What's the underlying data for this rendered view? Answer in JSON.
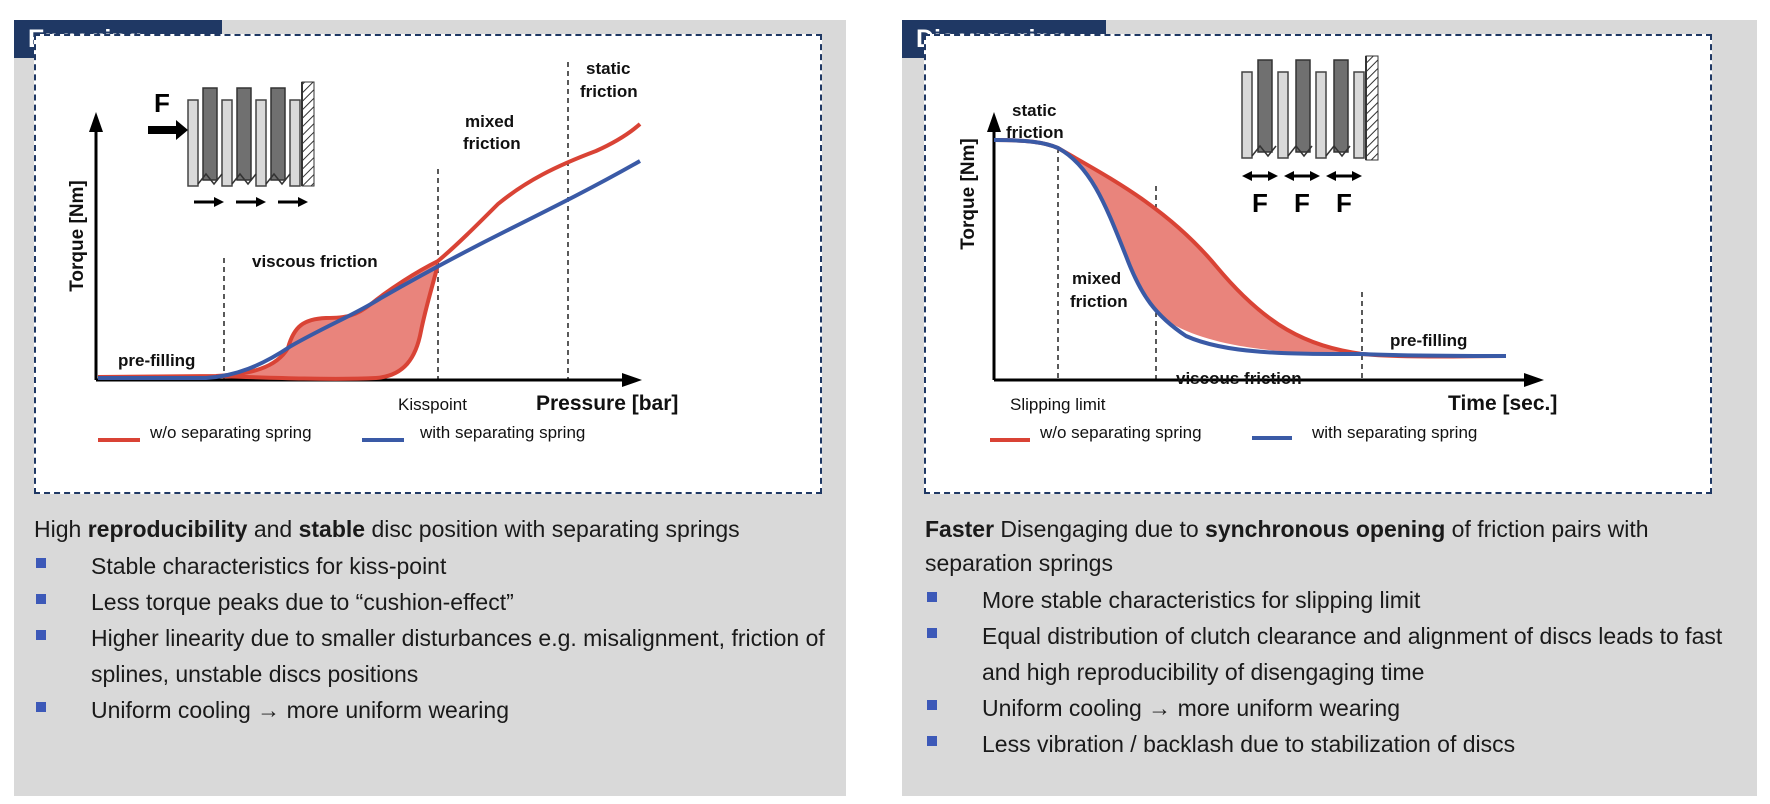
{
  "colors": {
    "tab_bg": "#1f3864",
    "panel_bg": "#d9d9d9",
    "red_curve": "#d94335",
    "red_fill": "#e9847c",
    "blue_curve": "#3a5aa6",
    "bullet": "#3d59b8"
  },
  "engaging": {
    "tab_title": "Engaging",
    "y_axis_label": "Torque [Nm]",
    "x_axis_label": "Pressure [bar]",
    "force_label": "F",
    "regions": {
      "pre_filling": "pre-filling",
      "viscous_friction": "viscous friction",
      "mixed_friction": "mixed friction",
      "static_friction": "static friction"
    },
    "kisspoint_label": "Kisspoint",
    "legend": {
      "red": "w/o separating spring",
      "blue": "with separating spring"
    },
    "description": {
      "t1": "High ",
      "b1": "reproducibility",
      "t2": " and ",
      "b2": "stable",
      "t3": " disc position with separating springs"
    },
    "bullets": [
      "Stable characteristics for kiss-point",
      "Less torque peaks due to “cushion-effect”",
      "Higher linearity due to smaller disturbances e.g. misalignment, friction of splines, unstable discs positions",
      "Uniform cooling → more uniform wearing"
    ]
  },
  "disengaging": {
    "tab_title": "Disengaging",
    "y_axis_label": "Torque [Nm]",
    "x_axis_label": "Time [sec.]",
    "force_labels": [
      "F",
      "F",
      "F"
    ],
    "regions": {
      "static_friction": "static friction",
      "mixed_friction": "mixed friction",
      "viscous_friction": "viscous friction",
      "pre_filling": "pre-filling"
    },
    "slipping_limit_label": "Slipping limit",
    "legend": {
      "red": "w/o separating spring",
      "blue": "with separating spring"
    },
    "description": {
      "b1": "Faster",
      "t1": " Disengaging due to ",
      "b2": "synchronous opening",
      "t2": " of friction pairs with separation springs"
    },
    "bullets": [
      "More stable characteristics for slipping limit",
      "Equal distribution of clutch clearance and alignment of discs leads to fast and high reproducibility of disengaging time",
      "Uniform cooling → more uniform wearing",
      "Less vibration / backlash due to stabilization of discs"
    ]
  }
}
